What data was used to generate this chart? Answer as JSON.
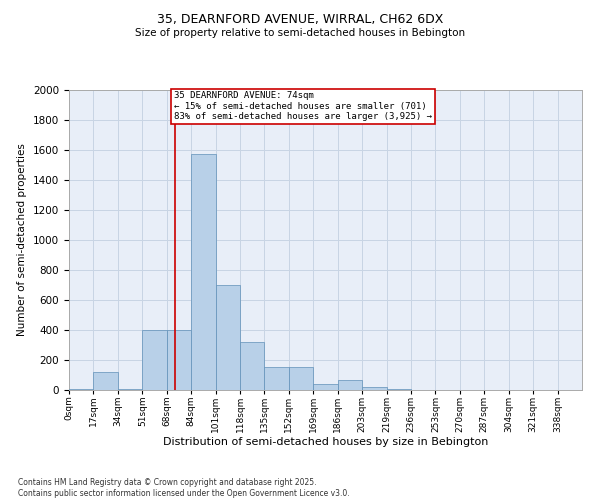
{
  "title1": "35, DEARNFORD AVENUE, WIRRAL, CH62 6DX",
  "title2": "Size of property relative to semi-detached houses in Bebington",
  "xlabel": "Distribution of semi-detached houses by size in Bebington",
  "ylabel": "Number of semi-detached properties",
  "bin_labels": [
    "0sqm",
    "17sqm",
    "34sqm",
    "51sqm",
    "68sqm",
    "84sqm",
    "101sqm",
    "118sqm",
    "135sqm",
    "152sqm",
    "169sqm",
    "186sqm",
    "203sqm",
    "219sqm",
    "236sqm",
    "253sqm",
    "270sqm",
    "287sqm",
    "304sqm",
    "321sqm",
    "338sqm"
  ],
  "bar_heights": [
    5,
    120,
    5,
    400,
    400,
    1575,
    700,
    320,
    155,
    155,
    40,
    65,
    20,
    5,
    0,
    0,
    0,
    0,
    0,
    0,
    0
  ],
  "bar_color": "#b8d0e8",
  "bar_edge_color": "#6090b8",
  "grid_color": "#c8d4e4",
  "background_color": "#e8eef8",
  "red_line_x": 74,
  "bin_width": 17,
  "annotation_text": "35 DEARNFORD AVENUE: 74sqm\n← 15% of semi-detached houses are smaller (701)\n83% of semi-detached houses are larger (3,925) →",
  "annotation_box_color": "#ffffff",
  "annotation_box_edge": "#cc0000",
  "vline_color": "#cc0000",
  "footer": "Contains HM Land Registry data © Crown copyright and database right 2025.\nContains public sector information licensed under the Open Government Licence v3.0.",
  "ylim": [
    0,
    2000
  ],
  "yticks": [
    0,
    200,
    400,
    600,
    800,
    1000,
    1200,
    1400,
    1600,
    1800,
    2000
  ]
}
